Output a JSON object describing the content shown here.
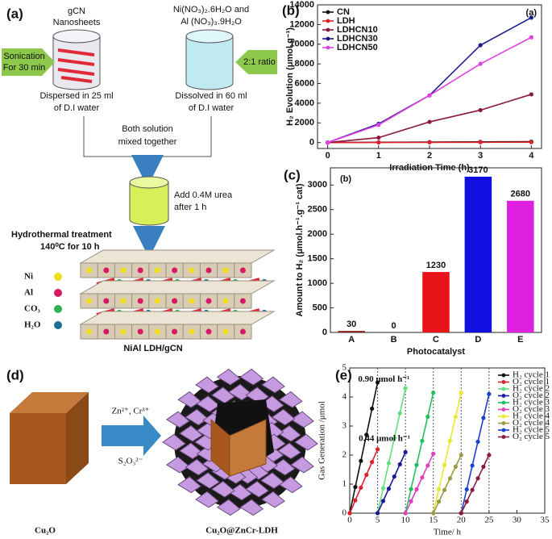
{
  "panel_a": {
    "label": "(a)",
    "gcn": [
      "gCN",
      "Nanosheets"
    ],
    "precursors": [
      "Ni(NO₃)₂.6H₂O and",
      "Al (NO₃)₃.9H₂O"
    ],
    "sonication": [
      "Sonication",
      "For 30 min"
    ],
    "ratio": "2:1 ratio",
    "dispersed": [
      "Dispersed in 25 ml",
      "of D.I  water"
    ],
    "dissolved": [
      "Dissolved in 60 ml",
      "of D.I  water"
    ],
    "mixed": [
      "Both  solution",
      "mixed together"
    ],
    "urea": [
      "Add 0.4M urea",
      "after 1 h"
    ],
    "hydrothermal": [
      "Hydrothermal treatment",
      "140⁰C for 10 h"
    ],
    "legend": [
      "Ni",
      "Al",
      "CO₃",
      "H₂O"
    ],
    "product": "NiAl LDH/gCN"
  },
  "panel_d": {
    "label": "(d)",
    "ions": "Zn²⁺, Cr³⁺",
    "anion": "S₂O₃²⁻",
    "start": "Cu₂O",
    "product": "Cu₂O@ZnCr-LDH"
  },
  "chart_data": [
    {
      "type": "line",
      "label": "(b)",
      "annotation": "(a)",
      "xlabel": "Irradiation Time (h)",
      "ylabel": "H₂ Evolution (μmol.g⁻¹)",
      "x": [
        0,
        1,
        2,
        3,
        4
      ],
      "xlim": [
        -0.2,
        4.2
      ],
      "ylim": [
        -600,
        14000
      ],
      "xticks": [
        0,
        1,
        2,
        3,
        4
      ],
      "yticks": [
        0,
        2000,
        4000,
        6000,
        8000,
        10000,
        12000,
        14000
      ],
      "legend": "upper left",
      "series": [
        {
          "name": "CN",
          "color": "#111111",
          "values": [
            0,
            30,
            50,
            70,
            90
          ]
        },
        {
          "name": "LDH",
          "color": "#e0202a",
          "values": [
            0,
            10,
            20,
            30,
            40
          ]
        },
        {
          "name": "LDHCN10",
          "color": "#8b1a3a",
          "values": [
            0,
            500,
            2100,
            3300,
            4900
          ]
        },
        {
          "name": "LDHCN30",
          "color": "#1a1a8c",
          "values": [
            0,
            1900,
            4800,
            9900,
            12700
          ]
        },
        {
          "name": "LDHCN50",
          "color": "#e040e0",
          "values": [
            0,
            1800,
            4800,
            8000,
            10700
          ]
        }
      ]
    },
    {
      "type": "bar",
      "label": "(c)",
      "annotation": "(b)",
      "xlabel": "Photocatalyst",
      "ylabel": "Amount to H₂ (μmol.h⁻¹.g⁻¹ cat)",
      "categories": [
        "A",
        "B",
        "C",
        "D",
        "E"
      ],
      "values": [
        30,
        0,
        1230,
        3170,
        2680
      ],
      "colors": [
        "#8b1a1a",
        "#777777",
        "#e8141a",
        "#1010e0",
        "#e020e0"
      ],
      "ylim": [
        0,
        3350
      ],
      "yticks": [
        0,
        500,
        1000,
        1500,
        2000,
        2500,
        3000
      ],
      "show_values": true
    },
    {
      "type": "line",
      "label": "(e)",
      "annotations": [
        "0.90 μmol h⁻¹",
        "0.44 μmol h⁻¹"
      ],
      "xlabel": "Time/ h",
      "ylabel": "Gas Generation /μmol",
      "xlim": [
        0,
        35
      ],
      "ylim": [
        0,
        5
      ],
      "xticks": [
        0,
        5,
        10,
        15,
        20,
        25,
        30,
        35
      ],
      "yticks": [
        0,
        1,
        2,
        3,
        4,
        5
      ],
      "vlines": [
        5,
        10,
        15,
        20,
        25
      ],
      "legend": "upper right",
      "series": [
        {
          "name": "H₂ cycle 1",
          "color": "#111111",
          "x": [
            0,
            1,
            2,
            3,
            4,
            5
          ],
          "values": [
            0,
            0.9,
            1.8,
            2.7,
            3.6,
            4.5
          ]
        },
        {
          "name": "O₂ cycle 1",
          "color": "#e0202a",
          "x": [
            0,
            1,
            2,
            3,
            4,
            5
          ],
          "values": [
            0,
            0.44,
            0.88,
            1.32,
            1.76,
            2.2
          ]
        },
        {
          "name": "H₂ cycle 2",
          "color": "#5ee07a",
          "x": [
            5,
            6,
            7,
            8,
            9,
            10
          ],
          "values": [
            0,
            0.86,
            1.72,
            2.58,
            3.44,
            4.3
          ]
        },
        {
          "name": "O₂ cycle 2",
          "color": "#1a1a9a",
          "x": [
            5,
            6,
            7,
            8,
            9,
            10
          ],
          "values": [
            0,
            0.42,
            0.84,
            1.26,
            1.68,
            2.1
          ]
        },
        {
          "name": "H₂ cycle 3",
          "color": "#20c060",
          "x": [
            10,
            11,
            12,
            13,
            14,
            15
          ],
          "values": [
            0,
            0.83,
            1.66,
            2.49,
            3.32,
            4.15
          ]
        },
        {
          "name": "O₂ cycle 3",
          "color": "#e040c0",
          "x": [
            10,
            11,
            12,
            13,
            14,
            15
          ],
          "values": [
            0,
            0.41,
            0.82,
            1.23,
            1.64,
            2.05
          ]
        },
        {
          "name": "H₂ cycle 4",
          "color": "#e8e830",
          "x": [
            15,
            16,
            17,
            18,
            19,
            20
          ],
          "values": [
            0,
            0.83,
            1.66,
            2.49,
            3.32,
            4.15
          ]
        },
        {
          "name": "O₂ cycle 4",
          "color": "#9a9a40",
          "x": [
            15,
            16,
            17,
            18,
            19,
            20
          ],
          "values": [
            0,
            0.4,
            0.8,
            1.2,
            1.6,
            2.0
          ]
        },
        {
          "name": "H₂ cycle 5",
          "color": "#1a40d0",
          "x": [
            20,
            21,
            22,
            23,
            24,
            25
          ],
          "values": [
            0,
            0.82,
            1.64,
            2.46,
            3.28,
            4.1
          ]
        },
        {
          "name": "O₂ cycle 5",
          "color": "#8a1a40",
          "x": [
            20,
            21,
            22,
            23,
            24,
            25
          ],
          "values": [
            0,
            0.4,
            0.8,
            1.2,
            1.6,
            2.0
          ]
        }
      ]
    }
  ]
}
